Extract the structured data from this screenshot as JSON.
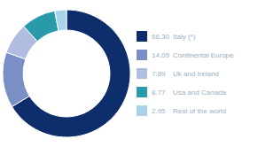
{
  "chart_data": {
    "type": "pie",
    "categories": [
      "Italy (*)",
      "Continental Europe",
      "Uk and Ireland",
      "Usa and Canada",
      "Rest of the world"
    ],
    "values": [
      66.3,
      14.09,
      7.89,
      8.77,
      2.95
    ],
    "value_labels": [
      "66.30",
      "14.09",
      "7.89",
      "8.77",
      "2.95"
    ],
    "colors": [
      "#0d2d6b",
      "#7b8fc7",
      "#b0bde0",
      "#2a9aaa",
      "#a8d3e8"
    ],
    "legend": "right"
  }
}
